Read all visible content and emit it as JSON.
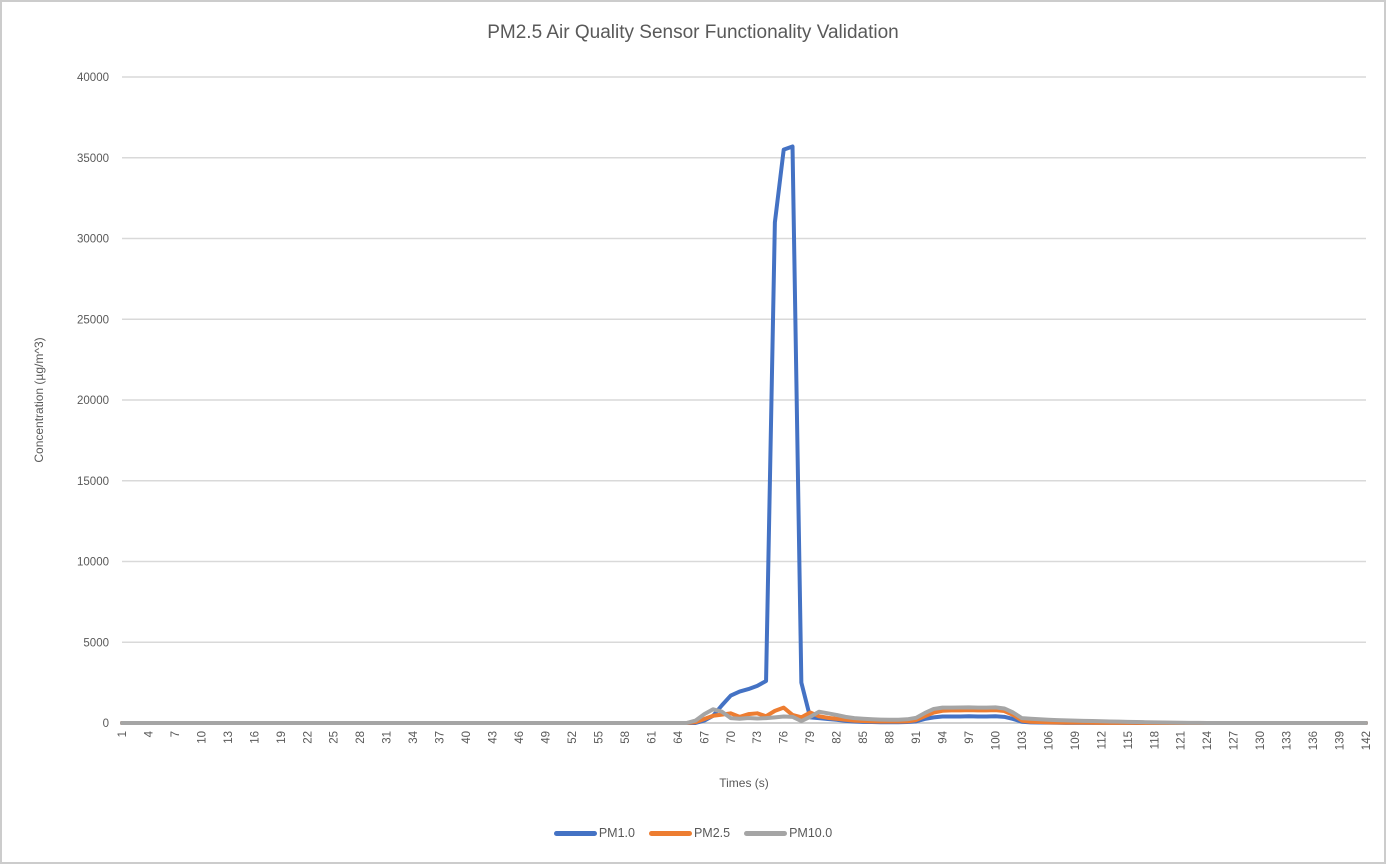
{
  "chart_data": {
    "type": "line",
    "title": "PM2.5 Air Quality Sensor Functionality Validation",
    "xlabel": "Times (s)",
    "ylabel": "Concentration (µg/m^3)",
    "legend_position": "bottom",
    "grid": "horizontal",
    "gridline_color": "#d9d9d9",
    "axis_line_color": "#bfbfbf",
    "tick_label_color": "#595959",
    "x_range": {
      "start": 1,
      "end": 142,
      "step": 1
    },
    "x_ticks": [
      1,
      4,
      7,
      10,
      13,
      16,
      19,
      22,
      25,
      28,
      31,
      34,
      37,
      40,
      43,
      46,
      49,
      52,
      55,
      58,
      61,
      64,
      67,
      70,
      73,
      76,
      79,
      82,
      85,
      88,
      91,
      94,
      97,
      100,
      103,
      106,
      109,
      112,
      115,
      118,
      121,
      124,
      127,
      130,
      133,
      136,
      139,
      142
    ],
    "ylim": [
      0,
      40000
    ],
    "y_ticks": [
      0,
      5000,
      10000,
      15000,
      20000,
      25000,
      30000,
      35000,
      40000
    ],
    "series": [
      {
        "name": "PM1.0",
        "color": "#4472c4",
        "default": 0,
        "points": {
          "67": 150,
          "68": 450,
          "69": 1100,
          "70": 1700,
          "71": 1950,
          "72": 2100,
          "73": 2300,
          "74": 2600,
          "75": 31000,
          "76": 35500,
          "77": 35700,
          "78": 2500,
          "79": 350,
          "80": 300,
          "81": 250,
          "82": 200,
          "83": 130,
          "84": 90,
          "85": 70,
          "86": 60,
          "87": 50,
          "88": 50,
          "89": 50,
          "90": 60,
          "91": 100,
          "92": 250,
          "93": 350,
          "94": 400,
          "95": 400,
          "96": 400,
          "97": 420,
          "98": 400,
          "99": 400,
          "100": 420,
          "101": 380,
          "102": 250,
          "103": 80,
          "104": 40,
          "105": 30,
          "106": 20,
          "107": 15,
          "108": 10,
          "109": 10,
          "110": 10,
          "111": 5,
          "112": 5,
          "113": 5,
          "114": 5,
          "115": 5
        }
      },
      {
        "name": "PM2.5",
        "color": "#ed7d31",
        "default": 0,
        "points": {
          "66": 50,
          "67": 250,
          "68": 450,
          "69": 520,
          "70": 600,
          "71": 380,
          "72": 550,
          "73": 600,
          "74": 420,
          "75": 750,
          "76": 950,
          "77": 500,
          "78": 350,
          "79": 650,
          "80": 420,
          "81": 320,
          "82": 260,
          "83": 200,
          "84": 150,
          "85": 120,
          "86": 100,
          "87": 90,
          "88": 90,
          "89": 90,
          "90": 100,
          "91": 180,
          "92": 420,
          "93": 650,
          "94": 760,
          "95": 780,
          "96": 780,
          "97": 800,
          "98": 780,
          "99": 780,
          "100": 800,
          "101": 740,
          "102": 500,
          "103": 150,
          "104": 80,
          "105": 60,
          "106": 40,
          "107": 30,
          "108": 25,
          "109": 20,
          "110": 20,
          "111": 15,
          "112": 10,
          "113": 10,
          "114": 10,
          "115": 5,
          "116": 5
        }
      },
      {
        "name": "PM10.0",
        "color": "#a5a5a5",
        "default": 0,
        "points": {
          "66": 150,
          "67": 550,
          "68": 850,
          "69": 700,
          "70": 300,
          "71": 260,
          "72": 310,
          "73": 280,
          "74": 300,
          "75": 350,
          "76": 400,
          "77": 380,
          "78": 120,
          "79": 380,
          "80": 700,
          "81": 600,
          "82": 500,
          "83": 380,
          "84": 300,
          "85": 260,
          "86": 230,
          "87": 210,
          "88": 200,
          "89": 200,
          "90": 230,
          "91": 320,
          "92": 620,
          "93": 870,
          "94": 950,
          "95": 950,
          "96": 960,
          "97": 970,
          "98": 950,
          "99": 950,
          "100": 970,
          "101": 900,
          "102": 650,
          "103": 300,
          "104": 260,
          "105": 230,
          "106": 200,
          "107": 180,
          "108": 160,
          "109": 150,
          "110": 130,
          "111": 120,
          "112": 110,
          "113": 95,
          "114": 85,
          "115": 70,
          "116": 60,
          "117": 50,
          "118": 40,
          "119": 30,
          "120": 25,
          "121": 15,
          "122": 10,
          "123": 5
        }
      }
    ]
  }
}
